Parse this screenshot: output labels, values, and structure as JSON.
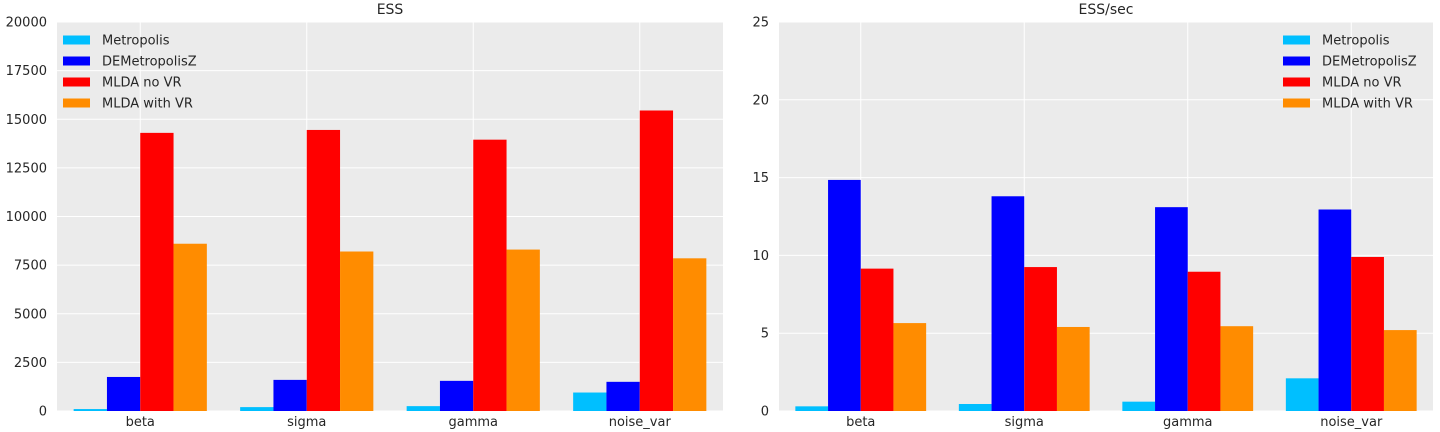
{
  "chart_data": [
    {
      "type": "bar",
      "title": "ESS",
      "xlabel": "",
      "ylabel": "",
      "categories": [
        "beta",
        "sigma",
        "gamma",
        "noise_var"
      ],
      "ylim": [
        0,
        20000
      ],
      "yticks": [
        0,
        2500,
        5000,
        7500,
        10000,
        12500,
        15000,
        17500,
        20000
      ],
      "ytick_labels": [
        "0",
        "2500",
        "5000",
        "7500",
        "10000",
        "12500",
        "15000",
        "17500",
        "20000"
      ],
      "grid": true,
      "legend_position": "top-left",
      "series": [
        {
          "name": "Metropolis",
          "color": "#00BFFF",
          "values": [
            100,
            200,
            250,
            950
          ]
        },
        {
          "name": "DEMetropolisZ",
          "color": "#0000FF",
          "values": [
            1750,
            1600,
            1550,
            1500
          ]
        },
        {
          "name": "MLDA no VR",
          "color": "#FF0000",
          "values": [
            14300,
            14450,
            13950,
            15450
          ]
        },
        {
          "name": "MLDA with VR",
          "color": "#FF8C00",
          "values": [
            8600,
            8200,
            8300,
            7850
          ]
        }
      ]
    },
    {
      "type": "bar",
      "title": "ESS/sec",
      "xlabel": "",
      "ylabel": "",
      "categories": [
        "beta",
        "sigma",
        "gamma",
        "noise_var"
      ],
      "ylim": [
        0,
        25
      ],
      "yticks": [
        0,
        5,
        10,
        15,
        20,
        25
      ],
      "ytick_labels": [
        "0",
        "5",
        "10",
        "15",
        "20",
        "25"
      ],
      "grid": true,
      "legend_position": "top-right",
      "series": [
        {
          "name": "Metropolis",
          "color": "#00BFFF",
          "values": [
            0.3,
            0.45,
            0.6,
            2.1
          ]
        },
        {
          "name": "DEMetropolisZ",
          "color": "#0000FF",
          "values": [
            14.85,
            13.8,
            13.1,
            12.95
          ]
        },
        {
          "name": "MLDA no VR",
          "color": "#FF0000",
          "values": [
            9.15,
            9.25,
            8.95,
            9.9
          ]
        },
        {
          "name": "MLDA with VR",
          "color": "#FF8C00",
          "values": [
            5.65,
            5.4,
            5.45,
            5.2
          ]
        }
      ]
    }
  ]
}
